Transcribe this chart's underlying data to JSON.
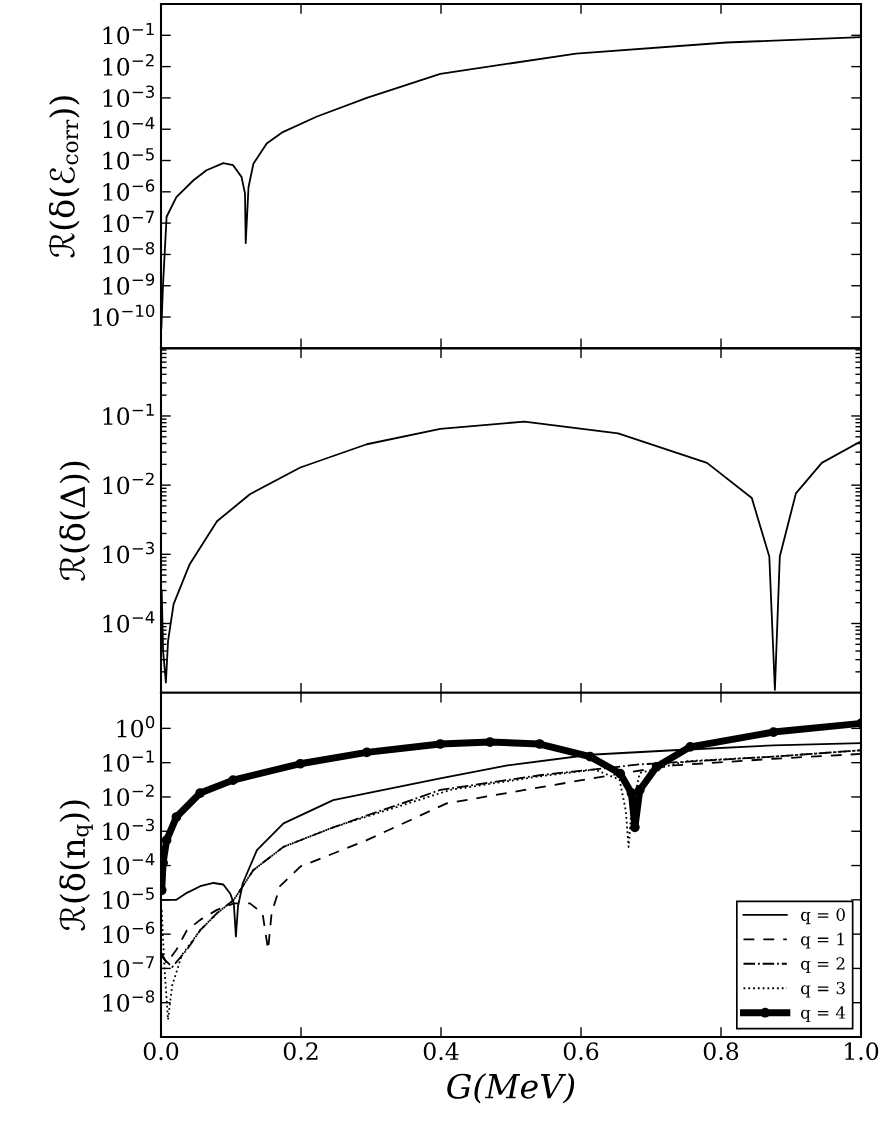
{
  "chart_data": [
    {
      "type": "line",
      "ylabel": "ℛ(δ(ℰ$_{corr}$))",
      "log": true,
      "tick_labels": "y",
      "xlim": [
        0,
        1
      ],
      "xticks": [
        0,
        0.2,
        0.4,
        0.6,
        0.8,
        1
      ],
      "ylim": [
        1e-11,
        1
      ],
      "yticks": [
        {
          "value": 1e-10,
          "label": "10$^{−10}$"
        },
        {
          "value": 1e-09,
          "label": "10$^{−9}$"
        },
        {
          "value": 1e-08,
          "label": "10$^{−8}$"
        },
        {
          "value": 1e-07,
          "label": "10$^{−7}$"
        },
        {
          "value": 1e-06,
          "label": "10$^{−6}$"
        },
        {
          "value": 1e-05,
          "label": "10$^{−5}$"
        },
        {
          "value": 0.0001,
          "label": "10$^{−4}$"
        },
        {
          "value": 0.001,
          "label": "10$^{−3}$"
        },
        {
          "value": 0.01,
          "label": "10$^{−2}$"
        },
        {
          "value": 0.1,
          "label": "10$^{−1}$"
        }
      ],
      "series": [
        {
          "color": "#000000",
          "line_style": "solid",
          "x": [
            0.0005,
            0.003,
            0.008,
            0.022,
            0.046,
            0.065,
            0.089,
            0.103,
            0.115,
            0.12,
            0.121,
            0.125,
            0.132,
            0.151,
            0.174,
            0.222,
            0.294,
            0.399,
            0.593,
            0.808,
            1.0
          ],
          "values": [
            4.4e-11,
            1.2e-09,
            1.6e-07,
            6.8e-07,
            2.3e-06,
            4.9e-06,
            8.3e-06,
            7.1e-06,
            3e-06,
            8.9e-07,
            2.3e-08,
            1.4e-06,
            7.9e-06,
            3.5e-05,
            8.1e-05,
            0.00025,
            0.001,
            0.0059,
            0.026,
            0.059,
            0.087
          ]
        }
      ]
    },
    {
      "type": "line",
      "ylabel": "ℛ(δ(Δ))",
      "log": true,
      "tick_labels": "y",
      "xlim": [
        0,
        1
      ],
      "xticks": [
        0,
        0.2,
        0.4,
        0.6,
        0.8,
        1
      ],
      "ylim": [
        1e-05,
        0.95
      ],
      "yticks": [
        {
          "value": 0.0001,
          "label": "10$^{−4}$"
        },
        {
          "value": 0.001,
          "label": "10$^{−3}$"
        },
        {
          "value": 0.01,
          "label": "10$^{−2}$"
        },
        {
          "value": 0.1,
          "label": "10$^{−1}$"
        }
      ],
      "series": [
        {
          "color": "#000000",
          "line_style": "solid",
          "x": [
            0.001,
            0.003,
            0.007,
            0.01,
            0.018,
            0.041,
            0.08,
            0.127,
            0.199,
            0.294,
            0.399,
            0.519,
            0.653,
            0.78,
            0.844,
            0.869,
            0.877,
            0.884,
            0.907,
            0.944,
            1.0
          ],
          "values": [
            0.0003,
            4e-05,
            1.4e-05,
            5.5e-05,
            0.00019,
            0.00072,
            0.003,
            0.0074,
            0.018,
            0.039,
            0.065,
            0.083,
            0.056,
            0.021,
            0.0065,
            0.00093,
            1.1e-05,
            0.00093,
            0.0076,
            0.021,
            0.043
          ]
        }
      ]
    },
    {
      "type": "line",
      "ylabel": "ℛ(δ(n$_{q}$))",
      "xlabel": "G(MeV)",
      "log": true,
      "legend": "bottom right",
      "xlim": [
        0,
        1
      ],
      "xticks": [
        {
          "value": 0,
          "label": "0.0"
        },
        {
          "value": 0.2,
          "label": "0.2"
        },
        {
          "value": 0.4,
          "label": "0.4"
        },
        {
          "value": 0.6,
          "label": "0.6"
        },
        {
          "value": 0.8,
          "label": "0.8"
        },
        {
          "value": 1,
          "label": "1.0"
        }
      ],
      "ylim": [
        1e-09,
        11
      ],
      "yticks": [
        {
          "value": 1e-08,
          "label": "10$^{−8}$"
        },
        {
          "value": 1e-07,
          "label": "10$^{−7}$"
        },
        {
          "value": 1e-06,
          "label": "10$^{−6}$"
        },
        {
          "value": 1e-05,
          "label": "10$^{−5}$"
        },
        {
          "value": 0.0001,
          "label": "10$^{−4}$"
        },
        {
          "value": 0.001,
          "label": "10$^{−3}$"
        },
        {
          "value": 0.01,
          "label": "10$^{−2}$"
        },
        {
          "value": 0.1,
          "label": "10$^{−1}$"
        },
        {
          "value": 1,
          "label": "10$^{0}$"
        }
      ],
      "series": [
        {
          "name": "q = 0",
          "color": "#000000",
          "line_style": "solid",
          "x": [
            0.001,
            0.022,
            0.037,
            0.056,
            0.075,
            0.089,
            0.099,
            0.104,
            0.107,
            0.11,
            0.117,
            0.137,
            0.175,
            0.246,
            0.399,
            0.495,
            0.613,
            0.732,
            0.875,
            1.0
          ],
          "values": [
            1e-05,
            1e-05,
            1.6e-05,
            2.5e-05,
            3.1e-05,
            2.8e-05,
            1.5e-05,
            7.9e-06,
            8.5e-07,
            6.5e-06,
            3.1e-05,
            0.00028,
            0.0017,
            0.0081,
            0.035,
            0.083,
            0.17,
            0.23,
            0.32,
            0.37
          ]
        },
        {
          "name": "q = 1",
          "color": "#000000",
          "line_style": "dashed",
          "x": [
            0.001,
            0.008,
            0.022,
            0.037,
            0.056,
            0.08,
            0.104,
            0.127,
            0.145,
            0.153,
            0.158,
            0.17,
            0.199,
            0.294,
            0.408,
            0.541,
            0.656,
            0.732,
            0.875,
            1.0
          ],
          "values": [
            2.8e-07,
            1.4e-07,
            3.5e-07,
            1.3e-06,
            2.6e-06,
            5.1e-06,
            7.9e-06,
            7.9e-06,
            4.1e-06,
            3.5e-07,
            4.1e-06,
            2.5e-05,
            9.3e-05,
            0.00055,
            0.0065,
            0.019,
            0.048,
            0.083,
            0.13,
            0.18
          ]
        },
        {
          "name": "q = 2",
          "color": "#000000",
          "line_style": "dashdot",
          "x": [
            0.001,
            0.016,
            0.037,
            0.056,
            0.08,
            0.104,
            0.113,
            0.132,
            0.175,
            0.246,
            0.399,
            0.541,
            0.684,
            0.875,
            1.0
          ],
          "values": [
            2.2e-07,
            1.1e-07,
            3.5e-07,
            1.3e-06,
            4.1e-06,
            1e-05,
            1.9e-05,
            7.4e-05,
            0.00035,
            0.0013,
            0.016,
            0.043,
            0.089,
            0.15,
            0.23
          ]
        },
        {
          "name": "q = 3",
          "color": "#000000",
          "line_style": "dotted",
          "x": [
            0.001,
            0.005,
            0.01,
            0.016,
            0.03,
            0.056,
            0.08,
            0.104,
            0.132,
            0.175,
            0.246,
            0.413,
            0.541,
            0.62,
            0.655,
            0.664,
            0.668,
            0.672,
            0.684,
            0.75,
            0.875,
            1.0
          ],
          "values": [
            5e-06,
            1e-07,
            3.2e-09,
            3.2e-08,
            2.5e-07,
            1.3e-06,
            4e-06,
            1e-05,
            7.4e-05,
            0.00035,
            0.0013,
            0.016,
            0.04,
            0.063,
            0.032,
            0.004,
            0.00035,
            0.004,
            0.05,
            0.11,
            0.15,
            0.23
          ]
        },
        {
          "name": "q = 4",
          "color": "#000000",
          "line_style": "solid",
          "marker": "circle",
          "x": [
            0.001,
            0.003,
            0.008,
            0.022,
            0.056,
            0.103,
            0.199,
            0.294,
            0.399,
            0.47,
            0.541,
            0.613,
            0.656,
            0.672,
            0.677,
            0.684,
            0.708,
            0.756,
            0.875,
            1.0
          ],
          "values": [
            1.9e-05,
            0.00012,
            0.00055,
            0.0026,
            0.013,
            0.031,
            0.093,
            0.2,
            0.35,
            0.4,
            0.35,
            0.15,
            0.048,
            0.013,
            0.0013,
            0.016,
            0.076,
            0.29,
            0.78,
            1.4
          ]
        }
      ]
    }
  ]
}
